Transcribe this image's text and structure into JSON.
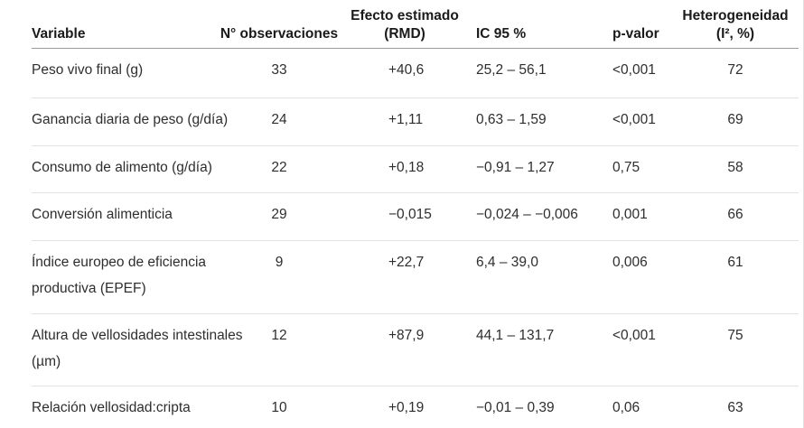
{
  "colors": {
    "header_rule": "#9a9a9a",
    "row_rule": "#e3e1e1",
    "header_text": "#1a1a1a",
    "body_text": "#2e2e2e",
    "background": "#ffffff"
  },
  "table": {
    "headers": {
      "variable": "Variable",
      "n_obs": "N° observaciones",
      "efecto_l1": "Efecto estimado",
      "efecto_l2": "(RMD)",
      "ic95": "IC 95 %",
      "p_valor": "p-valor",
      "het_l1": "Heterogeneidad",
      "het_l2": "(I², %)"
    },
    "rows": [
      {
        "variable_l1": "Peso vivo final (g)",
        "variable_l2": "",
        "n_obs": "33",
        "efecto": "+40,6",
        "ic95": "25,2 – 56,1",
        "p": "<0,001",
        "het": "72"
      },
      {
        "variable_l1": "Ganancia diaria de peso (g/día)",
        "variable_l2": "",
        "n_obs": "24",
        "efecto": "+1,11",
        "ic95": "0,63 – 1,59",
        "p": "<0,001",
        "het": "69"
      },
      {
        "variable_l1": "Consumo de alimento (g/día)",
        "variable_l2": "",
        "n_obs": "22",
        "efecto": "+0,18",
        "ic95": "−0,91 – 1,27",
        "p": "0,75",
        "het": "58"
      },
      {
        "variable_l1": "Conversión alimenticia",
        "variable_l2": "",
        "n_obs": "29",
        "efecto": "−0,015",
        "ic95": "−0,024 – −0,006",
        "p": "0,001",
        "het": "66"
      },
      {
        "variable_l1": "Índice europeo de eficiencia",
        "variable_l2": "productiva (EPEF)",
        "n_obs": "9",
        "efecto": "+22,7",
        "ic95": "6,4 – 39,0",
        "p": "0,006",
        "het": "61"
      },
      {
        "variable_l1": "Altura de vellosidades intestinales",
        "variable_l2": "(µm)",
        "n_obs": "12",
        "efecto": "+87,9",
        "ic95": "44,1 – 131,7",
        "p": "<0,001",
        "het": "75"
      },
      {
        "variable_l1": "Relación vellosidad:cripta",
        "variable_l2": "",
        "n_obs": "10",
        "efecto": "+0,19",
        "ic95": "−0,01 – 0,39",
        "p": "0,06",
        "het": "63"
      }
    ]
  }
}
